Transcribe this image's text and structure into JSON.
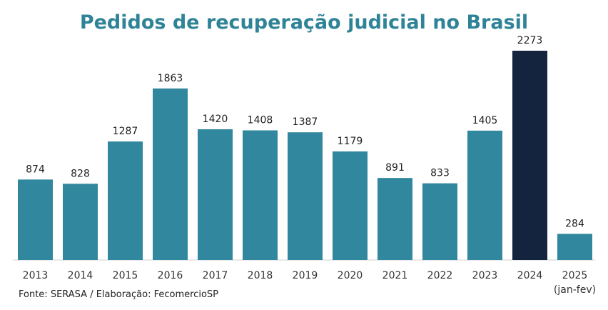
{
  "chart_data": {
    "type": "bar",
    "title": "Pedidos de recuperação judicial no Brasil",
    "categories": [
      "2013",
      "2014",
      "2015",
      "2016",
      "2017",
      "2018",
      "2019",
      "2020",
      "2021",
      "2022",
      "2023",
      "2024",
      "2025"
    ],
    "category_sublabels": [
      "",
      "",
      "",
      "",
      "",
      "",
      "",
      "",
      "",
      "",
      "",
      "",
      "(jan-fev)"
    ],
    "values": [
      874,
      828,
      1287,
      1863,
      1420,
      1408,
      1387,
      1179,
      891,
      833,
      1405,
      2273,
      284
    ],
    "highlight_index": 11,
    "xlabel": "",
    "ylabel": "",
    "grid": false,
    "colors": {
      "bar": "#31879d",
      "highlight": "#14243f"
    }
  },
  "source": "Fonte: SERASA / Elaboração: FecomercioSP"
}
